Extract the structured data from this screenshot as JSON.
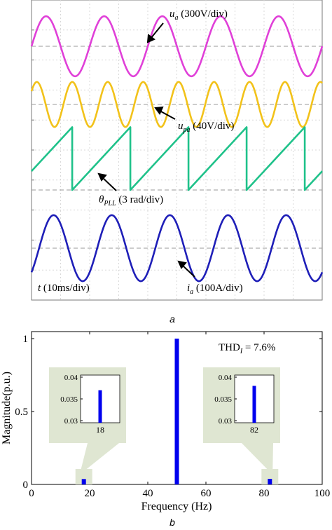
{
  "panel_a": {
    "caption": "a",
    "labels": {
      "ua": {
        "sym": "u",
        "sub": "a",
        "rest": " (300V/div)"
      },
      "upa": {
        "sym": "u",
        "sub": "pa",
        "rest": " (40V/div)"
      },
      "theta": {
        "sym": "θ",
        "sub": "PLL",
        "rest": " (3 rad/div)"
      },
      "ia": {
        "sym": "i",
        "sub": "a",
        "rest": " (100A/div)"
      },
      "time": {
        "sym": "t",
        "rest": " (10ms/div)"
      }
    }
  },
  "panel_b": {
    "caption": "b",
    "thd": {
      "main": "THD",
      "sub": "I",
      "rest": " = 7.6%"
    }
  },
  "colors": {
    "ua": "#e040d8",
    "upa": "#f2c21a",
    "theta": "#1fc28a",
    "ia": "#1f1fb8",
    "bar": "#0000ee",
    "inset_bg": "#dfe6d2"
  },
  "chart_data": [
    {
      "type": "line",
      "title": "",
      "xlabel": "t (10ms/div)",
      "time_per_div_ms": 10,
      "x_range_ms": [
        0,
        100
      ],
      "series": [
        {
          "name": "u_a",
          "scale": "300V/div",
          "kind": "sine",
          "frequency_hz": 50,
          "amplitude_div": 1.0
        },
        {
          "name": "u_pa",
          "scale": "40V/div",
          "kind": "sine",
          "frequency_hz": 82,
          "amplitude_div": 0.75
        },
        {
          "name": "θ_PLL",
          "scale": "3 rad/div",
          "kind": "sawtooth",
          "frequency_hz": 50,
          "range_rad": [
            0,
            6.28
          ]
        },
        {
          "name": "i_a",
          "scale": "100A/div",
          "kind": "sine",
          "frequency_hz": 50,
          "amplitude_div": 1.1
        }
      ]
    },
    {
      "type": "bar",
      "title": "",
      "xlabel": "Frequency (Hz)",
      "ylabel": "Magnitude(p.u.)",
      "xlim": [
        0,
        100
      ],
      "ylim": [
        0,
        1
      ],
      "x_ticks": [
        "0",
        "20",
        "40",
        "60",
        "80",
        "100"
      ],
      "y_ticks": [
        "0",
        "0.5",
        "1"
      ],
      "x": [
        18,
        50,
        82
      ],
      "values": [
        0.037,
        1.0,
        0.038
      ],
      "annotation": "THD_I = 7.6%",
      "insets": [
        {
          "x_tick": "18",
          "y_ticks": [
            "0.03",
            "0.035",
            "0.04"
          ],
          "ylim": [
            0.03,
            0.04
          ],
          "value": 0.037
        },
        {
          "x_tick": "82",
          "y_ticks": [
            "0.03",
            "0.035",
            "0.04"
          ],
          "ylim": [
            0.03,
            0.04
          ],
          "value": 0.038
        }
      ]
    }
  ]
}
